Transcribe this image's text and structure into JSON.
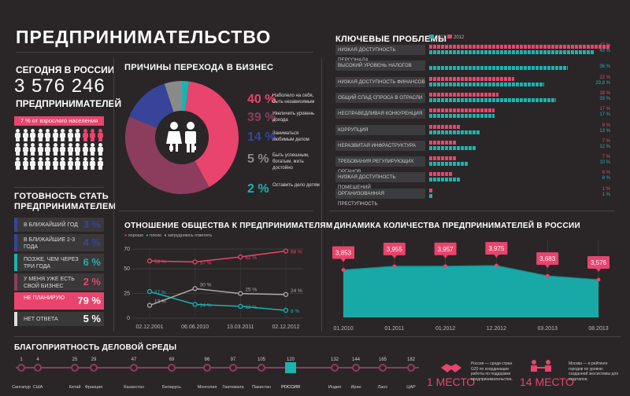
{
  "title": "ПРЕДПРИНИМАТЕЛЬСТВО",
  "today": {
    "label": "СЕГОДНЯ В РОССИИ",
    "number": "3 576 246",
    "sub": "ПРЕДПРИНИМАТЕЛЕЙ",
    "badge": "7 % от взрослого населения"
  },
  "readiness": {
    "title": "ГОТОВНОСТЬ СТАТЬ ПРЕДПРИНИМАТЕЛЕМ",
    "rows": [
      {
        "label": "В БЛИЖАЙШИЙ ГОД",
        "value": "3 %"
      },
      {
        "label": "В БЛИЖАЙШИЕ 2-3 ГОДА",
        "value": "4 %"
      },
      {
        "label": "ПОЗЖЕ, ЧЕМ ЧЕРЕЗ ТРИ ГОДА",
        "value": "6 %"
      },
      {
        "label": "У МЕНЯ УЖЕ ЕСТЬ СВОЙ БИЗНЕС",
        "value": "2 %"
      },
      {
        "label": "НЕ ПЛАНИРУЮ",
        "value": "79 %"
      },
      {
        "label": "НЕТ ОТВЕТА",
        "value": "5 %"
      }
    ]
  },
  "reasons": {
    "title": "ПРИЧИНЫ ПЕРЕХОДА В БИЗНЕС",
    "items": [
      {
        "pct": "40 %",
        "text": "Наболело на себя, быть независимым"
      },
      {
        "pct": "39 %",
        "text": "Увеличить уровень дохода"
      },
      {
        "pct": "14 %",
        "text": "Заниматься любимым делом"
      },
      {
        "pct": "5 %",
        "text": "Быть успешным, богатым, жить достойно"
      },
      {
        "pct": "2 %",
        "text": "Оставить дело детям"
      }
    ]
  },
  "problems": {
    "title": "КЛЮЧЕВЫЕ ПРОБЛЕМЫ",
    "legend2011": "2011",
    "legend2012": "2012",
    "items": [
      {
        "label": "НИЗКАЯ ДОСТУПНОСТЬ ПЕРСОНАЛА",
        "v2012": 47,
        "v2011": 43,
        "t2012": "47 %",
        "t2011": "43 %"
      },
      {
        "label": "ВЫСОКИЙ УРОВЕНЬ НАЛОГОВ",
        "v2012": 0,
        "v2011": 36,
        "t2012": "",
        "t2011": "36 %"
      },
      {
        "label": "НИЗКАЯ ДОСТУПНОСТЬ ФИНАНСОВ",
        "v2012": 22,
        "v2011": 29.8,
        "t2012": "22 %",
        "t2011": "29,8 %"
      },
      {
        "label": "ОБЩИЙ СПАД СПРОСА В ОТРАСЛИ",
        "v2012": 18,
        "v2011": 33,
        "t2012": "18 %",
        "t2011": "33 %"
      },
      {
        "label": "НЕСПРАВЕДЛИВАЯ КОНКУРЕНЦИЯ",
        "v2012": 17,
        "v2011": 17,
        "t2012": "17 %",
        "t2011": "17 %"
      },
      {
        "label": "КОРРУПЦИЯ",
        "v2012": 8,
        "v2011": 13,
        "t2012": "8 %",
        "t2011": "13 %"
      },
      {
        "label": "НЕРАЗВИТАЯ ИНФРАСТРУКТУРА",
        "v2012": 7,
        "v2011": 12,
        "t2012": "7 %",
        "t2011": "12 %"
      },
      {
        "label": "ТРЕБОВАНИЯ РЕГУЛИРУЮЩИХ ОРГАНОВ",
        "v2012": 7,
        "v2011": 10,
        "t2012": "7 %",
        "t2011": "10 %"
      },
      {
        "label": "НИЗКАЯ ДОСТУПНОСТЬ ПОМЕЩЕНИЙ",
        "v2012": 6,
        "v2011": 8,
        "t2012": "6 %",
        "t2011": "8 %"
      },
      {
        "label": "ОРГАНИЗОВАННАЯ ПРЕСТУПНОСТЬ",
        "v2012": 1,
        "v2011": 1,
        "t2012": "1 %",
        "t2011": "1 %"
      }
    ]
  },
  "attitude": {
    "title": "ОТНОШЕНИЕ ОБЩЕСТВА К ПРЕДПРИНИМАТЕЛЯМ",
    "legend": [
      "хорошо",
      "плохо",
      "затрудняюсь ответить"
    ]
  },
  "dynamics": {
    "title": "ДИНАМИКА КОЛИЧЕСТВА ПРЕДПРИНИМАТЕЛЕЙ В РОССИИ"
  },
  "environment": {
    "title": "БЛАГОПРИЯТНОСТЬ ДЕЛОВОЙ СРЕДЫ",
    "countries": [
      {
        "rank": "1",
        "name": "Сингапур"
      },
      {
        "rank": "4",
        "name": "США"
      },
      {
        "rank": "25",
        "name": "Китай"
      },
      {
        "rank": "29",
        "name": "Франция"
      },
      {
        "rank": "47",
        "name": "Казахстан"
      },
      {
        "rank": "69",
        "name": "Беларусь"
      },
      {
        "rank": "86",
        "name": "Монголия"
      },
      {
        "rank": "97",
        "name": "Гватемала"
      },
      {
        "rank": "105",
        "name": "Пакистан"
      },
      {
        "rank": "120",
        "name": "РОССИЯ"
      },
      {
        "rank": "132",
        "name": "Индия"
      },
      {
        "rank": "144",
        "name": "Иран"
      },
      {
        "rank": "165",
        "name": "Лаос"
      },
      {
        "rank": "182",
        "name": "ЦАР"
      }
    ],
    "place1": "1 МЕСТО",
    "place1_text": "Россия — среди стран G20 по координации работы по поддержке предпринимательства.",
    "place14": "14 МЕСТО",
    "place14_text": "Москва — в рейтинге городов по уровню созданной экосистемы для стартапов."
  },
  "colors": {
    "pink": "#e9446d",
    "teal": "#1bb3b0",
    "navy": "#37449a",
    "plum": "#8c3d5e",
    "grey": "#8a8a8a"
  },
  "chart_data": [
    {
      "type": "pie",
      "title": "ПРИЧИНЫ ПЕРЕХОДА В БИЗНЕС",
      "categories": [
        "Наболело на себя, быть независимым",
        "Увеличить уровень дохода",
        "Заниматься любимым делом",
        "Быть успешным, богатым, жить достойно",
        "Оставить дело детям"
      ],
      "values": [
        40,
        39,
        14,
        5,
        2
      ]
    },
    {
      "type": "line",
      "title": "ОТНОШЕНИЕ ОБЩЕСТВА К ПРЕДПРИНИМАТЕЛЯМ",
      "x": [
        "02.12.2001",
        "06.06.2010",
        "13.03.2011",
        "02.12.2012"
      ],
      "yticks": [
        "70",
        "50",
        "25",
        "0"
      ],
      "ylim": [
        0,
        70
      ],
      "series": [
        {
          "name": "хорошо",
          "values": [
            58,
            57,
            62,
            68
          ],
          "labels": [
            "58 %",
            "57 %",
            "62 %",
            "68 %"
          ]
        },
        {
          "name": "плохо",
          "values": [
            27,
            14,
            12,
            8
          ],
          "labels": [
            "27 %",
            "14 %",
            "12 %",
            "8 %"
          ]
        },
        {
          "name": "затрудняюсь ответить",
          "values": [
            13,
            30,
            25,
            24
          ],
          "labels": [
            "13 %",
            "30 %",
            "25 %",
            "24 %"
          ]
        }
      ]
    },
    {
      "type": "area",
      "title": "ДИНАМИКА КОЛИЧЕСТВА ПРЕДПРИНИМАТЕЛЕЙ В РОССИИ",
      "x": [
        "01.2010",
        "01.2011",
        "01.2012",
        "12.2012",
        "03.2013",
        "08.2013"
      ],
      "values": [
        3853,
        3955,
        3957,
        3975,
        3683,
        3576
      ],
      "labels": [
        "3,853",
        "3,955",
        "3,957",
        "3,975",
        "3,683",
        "3,576"
      ],
      "ylim": [
        0,
        4200
      ]
    }
  ]
}
